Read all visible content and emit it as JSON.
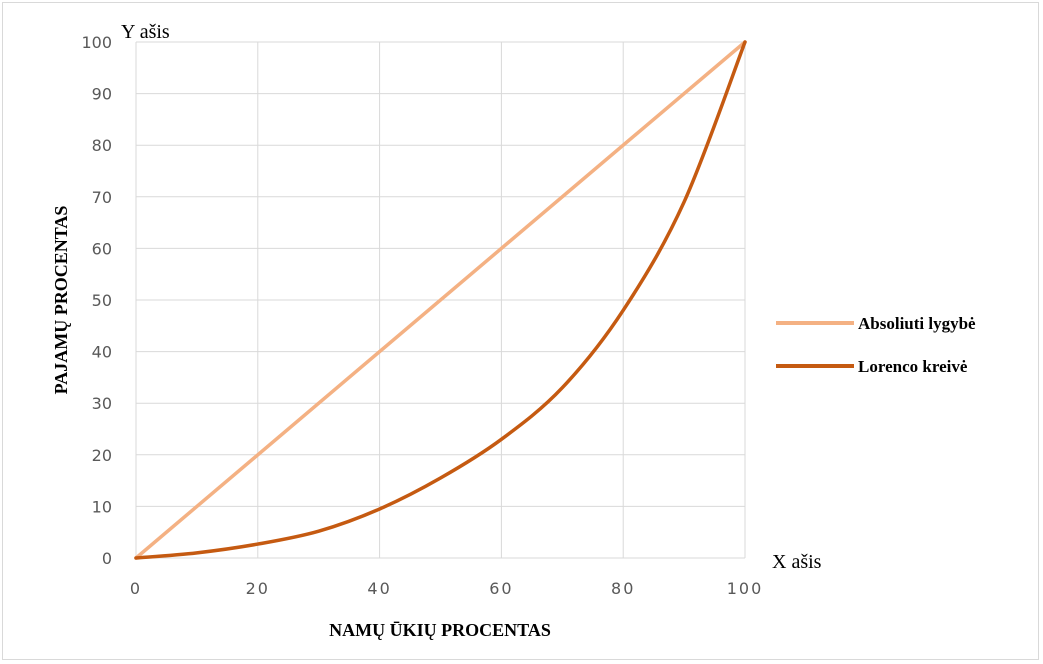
{
  "chart_data": {
    "type": "line",
    "xlabel": "NAMŲ ŪKIŲ PROCENTAS",
    "ylabel": "PAJAMŲ PROCENTAS",
    "x_axis_note": "X ašis",
    "y_axis_note": "Y ašis",
    "xlim": [
      0,
      100
    ],
    "ylim": [
      0,
      100
    ],
    "x_ticks": [
      0,
      20,
      40,
      60,
      80,
      100
    ],
    "y_ticks": [
      0,
      10,
      20,
      30,
      40,
      50,
      60,
      70,
      80,
      90,
      100
    ],
    "grid": "vertical and horizontal",
    "legend_position": "right",
    "series": [
      {
        "name": "Absoliuti lygybė",
        "color": "#f4b183",
        "points": [
          [
            0,
            0
          ],
          [
            100,
            100
          ]
        ]
      },
      {
        "name": "Lorenco kreivė",
        "color": "#c55a11",
        "points": [
          [
            0,
            0
          ],
          [
            10,
            1
          ],
          [
            20,
            2.7
          ],
          [
            30,
            5.2
          ],
          [
            40,
            9.5
          ],
          [
            50,
            15.5
          ],
          [
            60,
            23
          ],
          [
            70,
            33
          ],
          [
            80,
            48
          ],
          [
            90,
            69
          ],
          [
            100,
            100
          ]
        ]
      }
    ]
  }
}
